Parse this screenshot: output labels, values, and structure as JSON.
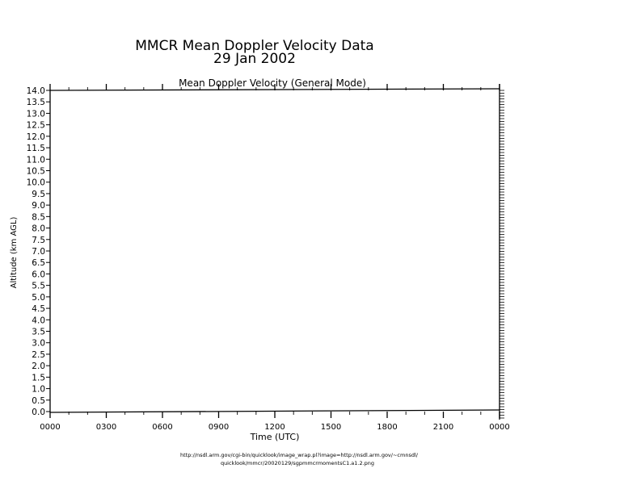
{
  "chart_data": {
    "type": "heatmap",
    "title": "MMCR Mean Doppler Velocity Data",
    "subtitle": "29 Jan 2002",
    "panel_title": "Mean Doppler Velocity (General Mode)",
    "xlabel": "Time (UTC)",
    "ylabel": "Altitude (km AGL)",
    "x_ticks": [
      "0000",
      "0300",
      "0600",
      "0900",
      "1200",
      "1500",
      "1800",
      "2100",
      "0000"
    ],
    "x_range_hours": [
      0,
      24
    ],
    "ylim": [
      0.0,
      14.0
    ],
    "y_ticks": [
      "0.0",
      "0.5",
      "1.0",
      "1.5",
      "2.0",
      "2.5",
      "3.0",
      "3.5",
      "4.0",
      "4.5",
      "5.0",
      "5.5",
      "6.0",
      "6.5",
      "7.0",
      "7.5",
      "8.0",
      "8.5",
      "9.0",
      "9.5",
      "10.0",
      "10.5",
      "11.0",
      "11.5",
      "12.0",
      "12.5",
      "13.0",
      "13.5",
      "14.0"
    ],
    "values": [],
    "grid": false
  },
  "footer": {
    "url_line1": "http://nsdl.arm.gov/cgi-bin/quicklook/image_wrap.pl?image=http://nsdl.arm.gov/~cmnsdl/",
    "url_line2": "quicklook/mmcr/20020129/sgpmmcrmomentsC1.a1.2.png"
  },
  "colors": {
    "axis": "#000000",
    "background": "#ffffff"
  }
}
